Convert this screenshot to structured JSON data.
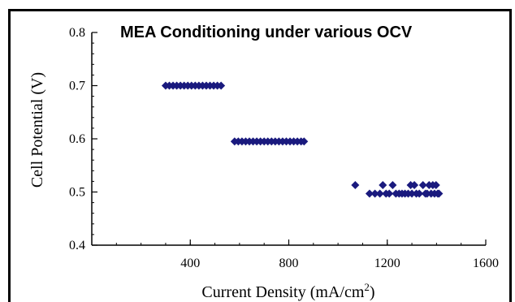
{
  "chart_data": {
    "type": "scatter",
    "title": "MEA Conditioning under various OCV",
    "xlabel": "Current Density  (mA/cm",
    "xlabel_sup": "2",
    "xlabel_close": ")",
    "ylabel": "Cell Potential  (V)",
    "xlim": [
      0,
      1600
    ],
    "ylim": [
      0.4,
      0.8
    ],
    "x_ticks": [
      400,
      800,
      1200,
      1600
    ],
    "x_tick_labels": [
      "400",
      "800",
      "1200",
      "1600"
    ],
    "y_ticks": [
      0.4,
      0.5,
      0.6,
      0.7,
      0.8
    ],
    "y_tick_labels": [
      "0.4",
      "0.5",
      "0.6",
      "0.7",
      "0.8"
    ],
    "grid": false,
    "marker_color": "#1a1a7e",
    "marker": "diamond",
    "series": [
      {
        "points": [
          [
            300,
            0.7
          ],
          [
            315,
            0.7
          ],
          [
            330,
            0.7
          ],
          [
            345,
            0.7
          ],
          [
            360,
            0.7
          ],
          [
            375,
            0.7
          ],
          [
            390,
            0.7
          ],
          [
            405,
            0.7
          ],
          [
            420,
            0.7
          ],
          [
            435,
            0.7
          ],
          [
            450,
            0.7
          ],
          [
            465,
            0.7
          ],
          [
            480,
            0.7
          ],
          [
            495,
            0.7
          ],
          [
            510,
            0.7
          ],
          [
            525,
            0.7
          ],
          [
            580,
            0.595
          ],
          [
            595,
            0.595
          ],
          [
            610,
            0.595
          ],
          [
            625,
            0.595
          ],
          [
            640,
            0.595
          ],
          [
            655,
            0.595
          ],
          [
            670,
            0.595
          ],
          [
            685,
            0.595
          ],
          [
            700,
            0.595
          ],
          [
            715,
            0.595
          ],
          [
            730,
            0.595
          ],
          [
            745,
            0.595
          ],
          [
            760,
            0.595
          ],
          [
            775,
            0.595
          ],
          [
            790,
            0.595
          ],
          [
            805,
            0.595
          ],
          [
            820,
            0.595
          ],
          [
            835,
            0.595
          ],
          [
            850,
            0.595
          ],
          [
            862,
            0.595
          ],
          [
            1070,
            0.513
          ],
          [
            1128,
            0.497
          ],
          [
            1150,
            0.497
          ],
          [
            1170,
            0.497
          ],
          [
            1182,
            0.513
          ],
          [
            1195,
            0.497
          ],
          [
            1208,
            0.497
          ],
          [
            1222,
            0.513
          ],
          [
            1235,
            0.497
          ],
          [
            1248,
            0.497
          ],
          [
            1260,
            0.497
          ],
          [
            1272,
            0.497
          ],
          [
            1285,
            0.497
          ],
          [
            1295,
            0.513
          ],
          [
            1300,
            0.497
          ],
          [
            1310,
            0.513
          ],
          [
            1318,
            0.497
          ],
          [
            1330,
            0.497
          ],
          [
            1345,
            0.513
          ],
          [
            1355,
            0.497
          ],
          [
            1362,
            0.497
          ],
          [
            1370,
            0.513
          ],
          [
            1378,
            0.497
          ],
          [
            1385,
            0.513
          ],
          [
            1392,
            0.497
          ],
          [
            1398,
            0.513
          ],
          [
            1405,
            0.497
          ],
          [
            1410,
            0.497
          ]
        ]
      }
    ]
  }
}
